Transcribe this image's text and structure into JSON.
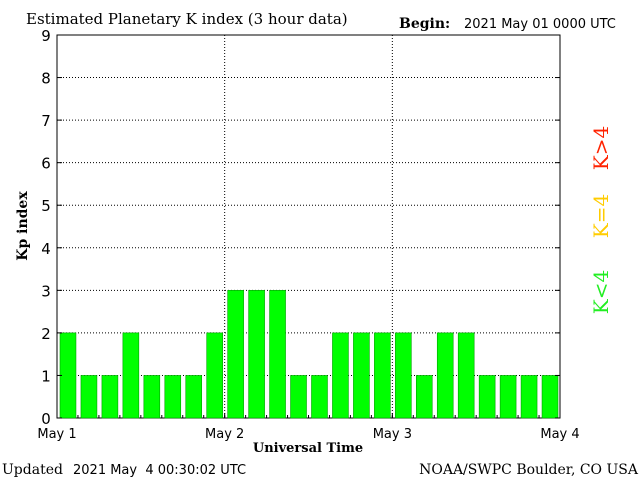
{
  "header": {
    "title": "Estimated Planetary K index (3 hour data)",
    "begin_label": "Begin:",
    "begin_value": "2021 May 01 0000 UTC"
  },
  "footer": {
    "updated_label": "Updated",
    "updated_value": "2021 May  4 00:30:02 UTC",
    "source": "NOAA/SWPC Boulder, CO USA"
  },
  "legend": {
    "items": [
      {
        "label": "K>4",
        "color": "#ff2200"
      },
      {
        "label": "K=4",
        "color": "#ffcc00"
      },
      {
        "label": "K<4",
        "color": "#22ee22"
      }
    ]
  },
  "colors": {
    "bar": "#00ff00",
    "bar_edge": "#00a000"
  },
  "chart_data": {
    "type": "bar",
    "title": "Estimated Planetary K index (3 hour data)",
    "xlabel": "Universal Time",
    "ylabel": "Kp index",
    "ylim": [
      0,
      9
    ],
    "yticks": [
      "0",
      "1",
      "2",
      "3",
      "4",
      "5",
      "6",
      "7",
      "8",
      "9"
    ],
    "xticks": [
      "May 1",
      "May 2",
      "May 3",
      "May 4"
    ],
    "grid": true,
    "values": [
      2,
      1,
      1,
      2,
      1,
      1,
      1,
      2,
      3,
      3,
      3,
      1,
      1,
      2,
      2,
      2,
      2,
      1,
      2,
      2,
      1,
      1,
      1,
      1
    ]
  }
}
